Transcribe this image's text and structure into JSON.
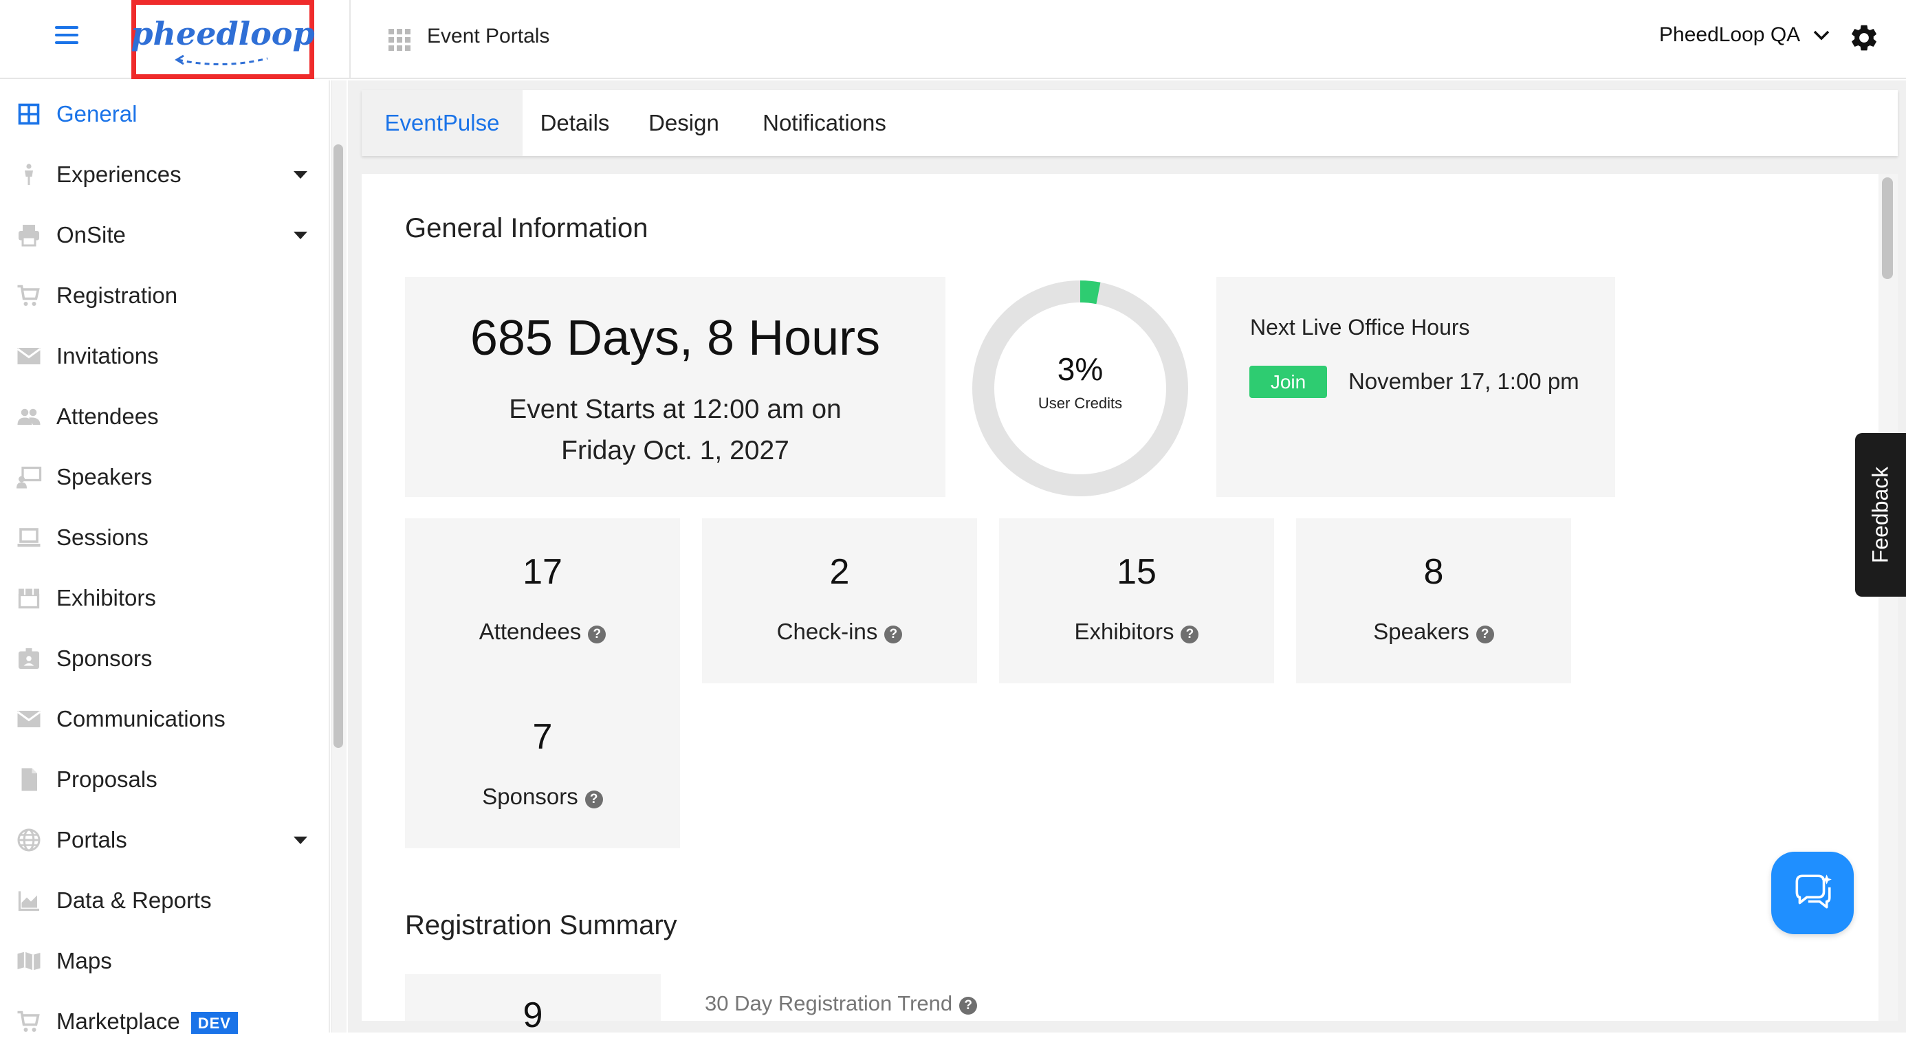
{
  "app": {
    "logo_text": "pheedloop",
    "portal_title": "Event Portals",
    "org_name": "PheedLoop QA"
  },
  "sidebar": {
    "items": [
      {
        "label": "General",
        "icon": "grid-icon",
        "active": true
      },
      {
        "label": "Experiences",
        "icon": "person-icon",
        "expandable": true
      },
      {
        "label": "OnSite",
        "icon": "printer-icon",
        "expandable": true
      },
      {
        "label": "Registration",
        "icon": "cart-icon"
      },
      {
        "label": "Invitations",
        "icon": "envelope-icon"
      },
      {
        "label": "Attendees",
        "icon": "people-icon"
      },
      {
        "label": "Speakers",
        "icon": "presenter-icon"
      },
      {
        "label": "Sessions",
        "icon": "laptop-icon"
      },
      {
        "label": "Exhibitors",
        "icon": "storefront-icon"
      },
      {
        "label": "Sponsors",
        "icon": "badge-icon"
      },
      {
        "label": "Communications",
        "icon": "envelope-icon"
      },
      {
        "label": "Proposals",
        "icon": "document-icon"
      },
      {
        "label": "Portals",
        "icon": "globe-icon",
        "expandable": true
      },
      {
        "label": "Data & Reports",
        "icon": "chart-icon"
      },
      {
        "label": "Maps",
        "icon": "map-icon"
      },
      {
        "label": "Marketplace",
        "icon": "cart-icon",
        "badge": "DEV"
      }
    ]
  },
  "tabs": [
    {
      "label": "EventPulse",
      "active": true
    },
    {
      "label": "Details"
    },
    {
      "label": "Design"
    },
    {
      "label": "Notifications"
    }
  ],
  "general_info": {
    "title": "General Information",
    "countdown": "685 Days, 8 Hours",
    "starts_line1": "Event Starts at 12:00 am on",
    "starts_line2": "Friday Oct. 1, 2027",
    "user_credits_percent": "3%",
    "user_credits_fraction": 0.03,
    "user_credits_label": "User Credits",
    "office_hours_title": "Next Live Office Hours",
    "join_label": "Join",
    "office_hours_date": "November 17, 1:00 pm"
  },
  "stats": [
    {
      "value": "17",
      "label": "Attendees"
    },
    {
      "value": "2",
      "label": "Check-ins"
    },
    {
      "value": "15",
      "label": "Exhibitors"
    },
    {
      "value": "8",
      "label": "Speakers"
    },
    {
      "value": "7",
      "label": "Sponsors"
    }
  ],
  "registration_summary": {
    "title": "Registration Summary",
    "count_partial": "9",
    "trend_title": "30 Day Registration Trend"
  },
  "feedback_label": "Feedback",
  "colors": {
    "accent": "#1a73e8",
    "join_green": "#2ecc71",
    "donut_fill": "#2ecc71",
    "donut_track": "#e3e3e3",
    "chat_button": "#1f8fff"
  }
}
